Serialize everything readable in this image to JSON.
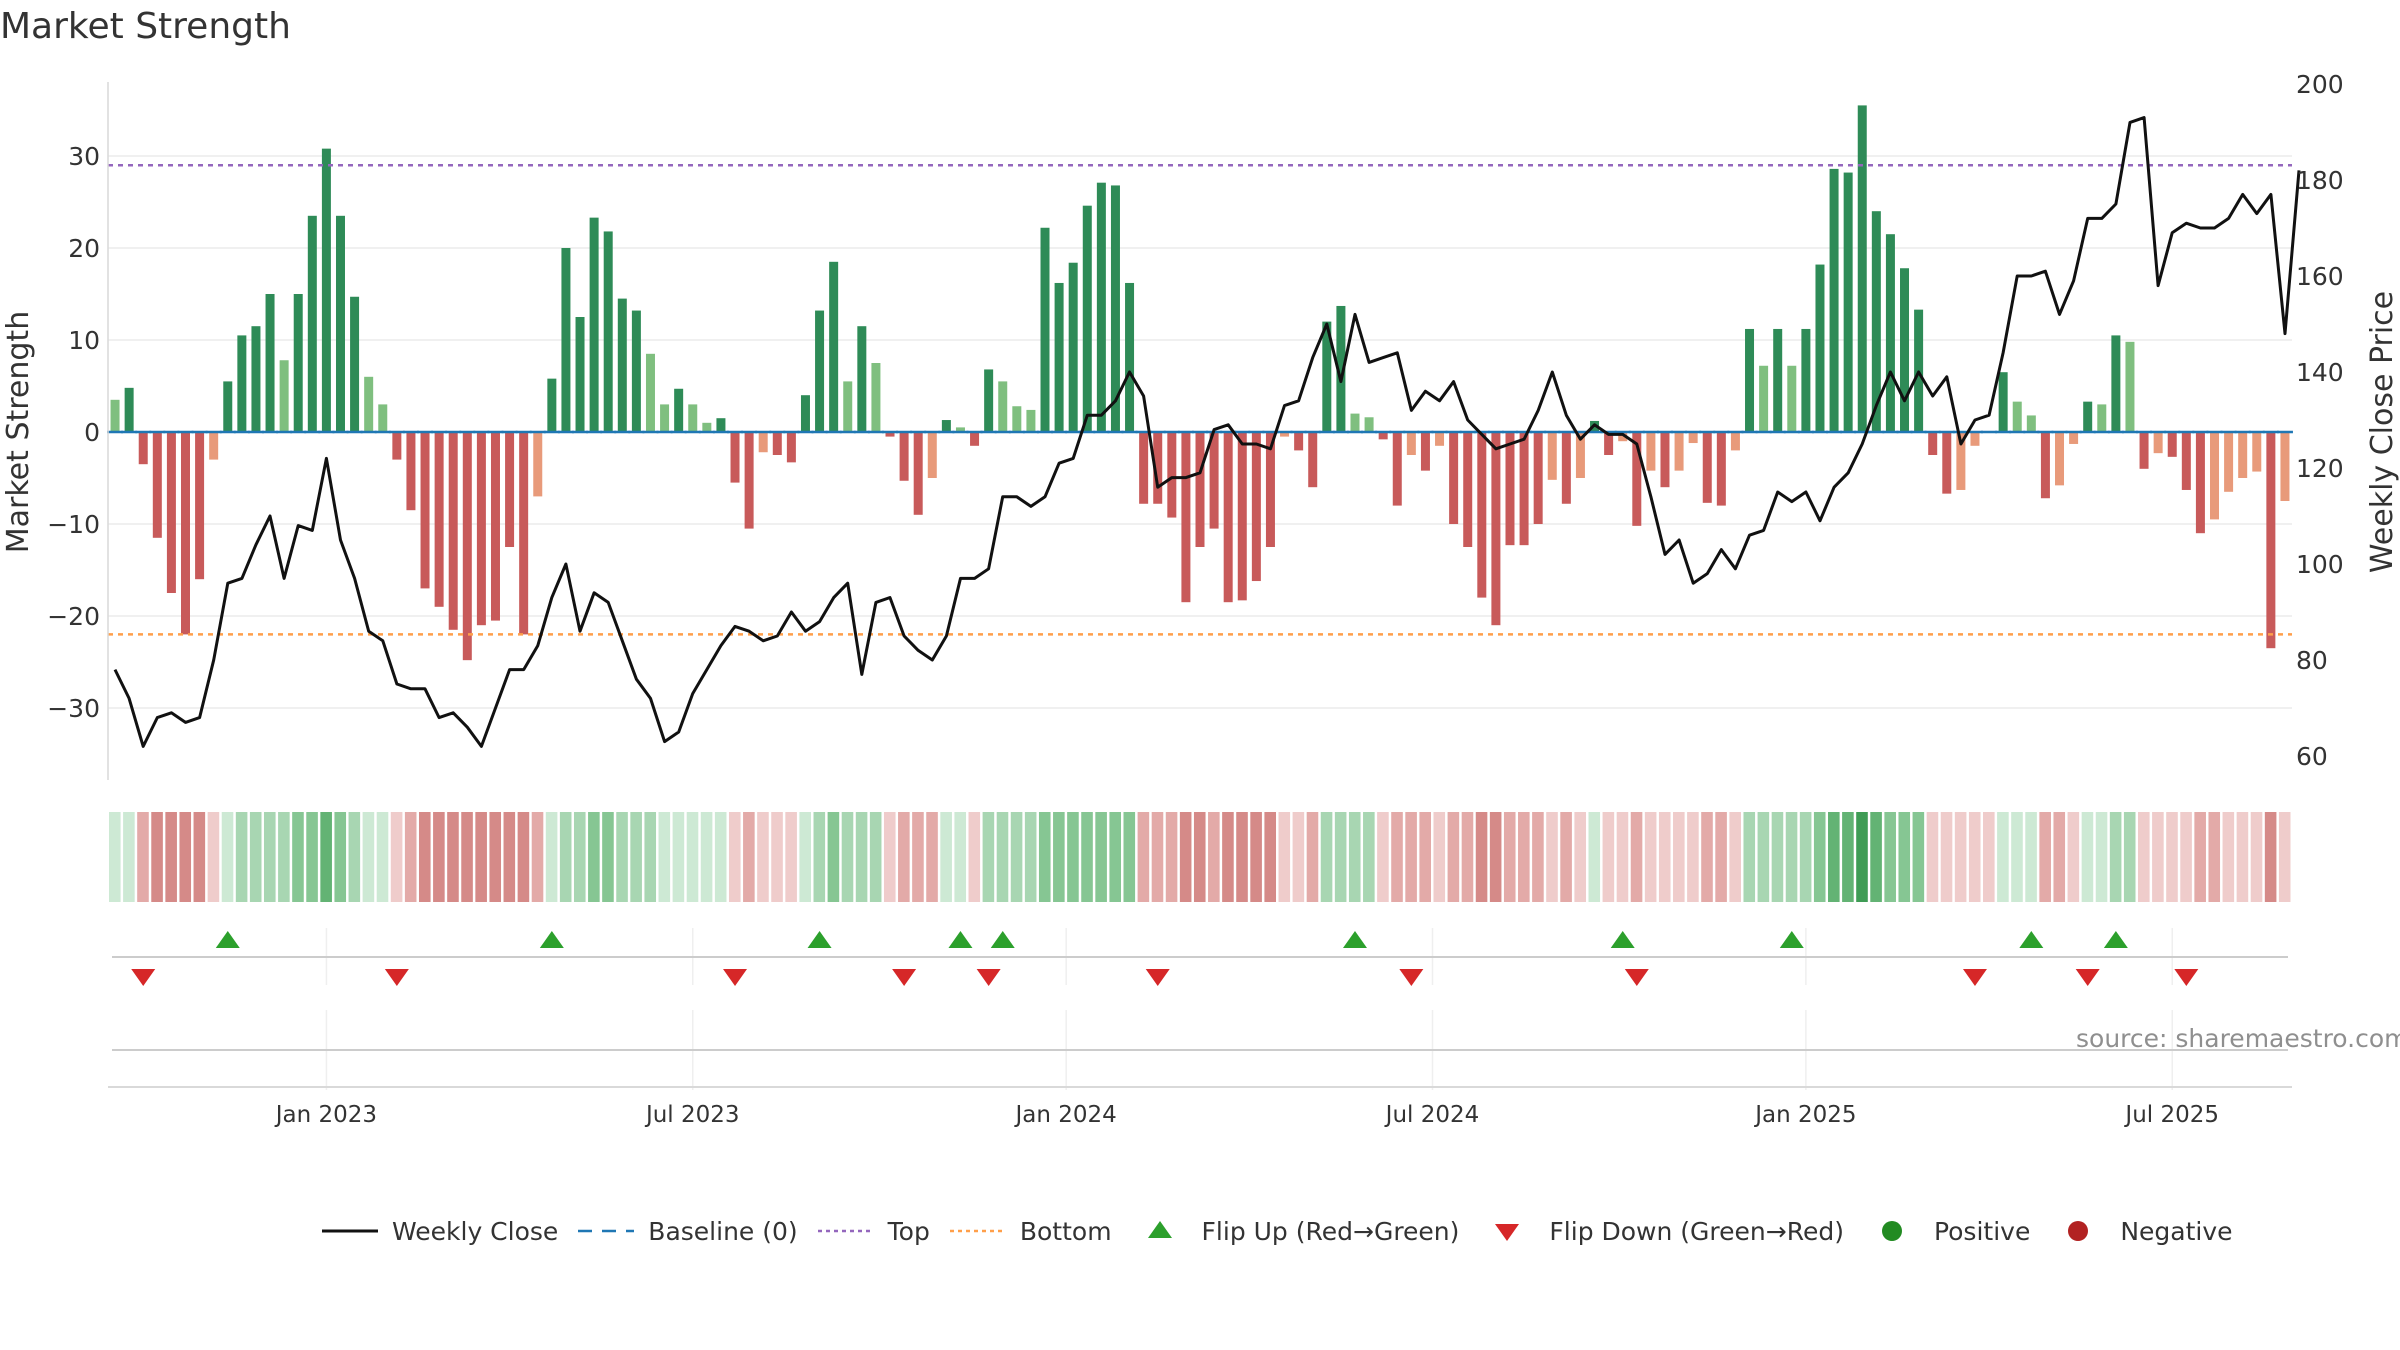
{
  "chart_data": {
    "type": "bar+line",
    "title": "Market Strength",
    "ylabel_left": "Market Strength",
    "ylabel_right": "Weekly Close Price",
    "ylim_left": [
      -38,
      38
    ],
    "ylim_right": [
      50,
      200
    ],
    "yticks_left": [
      30,
      20,
      10,
      0,
      -10,
      -20,
      -30
    ],
    "ytick_labels_left": [
      "30",
      "20",
      "10",
      "0",
      "−10",
      "−20",
      "−30"
    ],
    "yticks_right": [
      200,
      180,
      160,
      140,
      120,
      100,
      80,
      60
    ],
    "ytick_labels_right": [
      "200",
      "180",
      "160",
      "140",
      "120",
      "100",
      "80",
      "60"
    ],
    "top_level": 29,
    "bottom_level": -22,
    "x_tick_labels": [
      "Jan 2023",
      "Jul 2023",
      "Jan 2024",
      "Jul 2024",
      "Jan 2025",
      "Jul 2025"
    ],
    "x_tick_weeks": [
      15,
      41,
      67.5,
      93.5,
      120,
      146
    ],
    "colors": {
      "strong_green": "#2e8b57",
      "light_green": "#7fbf7f",
      "strong_red": "#c85a5a",
      "light_red": "#e89a7a",
      "line": "#111111",
      "baseline": "#1f77b4",
      "top": "#9467bd",
      "bottom": "#ff9f4a",
      "flip_up": "#2ca02c",
      "flip_down": "#d62728",
      "positive": "#228b22",
      "negative": "#b22222"
    },
    "strength": [
      3.5,
      4.8,
      -3.5,
      -11.5,
      -17.5,
      -22,
      -16,
      -3,
      5.5,
      10.5,
      11.5,
      15,
      7.8,
      15,
      23.5,
      30.8,
      23.5,
      14.7,
      6,
      3,
      -3,
      -8.5,
      -17,
      -19,
      -21.5,
      -24.8,
      -21,
      -20.5,
      -12.5,
      -22,
      -7,
      5.8,
      20,
      12.5,
      23.3,
      21.8,
      14.5,
      13.2,
      8.5,
      3,
      4.7,
      3,
      1,
      1.5,
      -5.5,
      -10.5,
      -2.2,
      -2.5,
      -3.3,
      4,
      13.2,
      18.5,
      5.5,
      11.5,
      7.5,
      -0.5,
      -5.3,
      -9,
      -5,
      1.3,
      0.5,
      -1.5,
      6.8,
      5.5,
      2.8,
      2.4,
      22.2,
      16.2,
      18.4,
      24.6,
      27.1,
      26.8,
      16.2,
      -7.8,
      -7.8,
      -9.3,
      -18.5,
      -12.5,
      -10.5,
      -18.5,
      -18.3,
      -16.2,
      -12.5,
      -0.5,
      -2,
      -6,
      12,
      13.7,
      2,
      1.6,
      -0.8,
      -8,
      -2.5,
      -4.2,
      -1.5,
      -10,
      -12.5,
      -18,
      -21,
      -12.3,
      -12.3,
      -10,
      -5.2,
      -7.8,
      -5,
      1.2,
      -2.5,
      -1,
      -10.2,
      -4.2,
      -6,
      -4.2,
      -1.2,
      -7.7,
      -8,
      -2,
      11.2,
      7.2,
      11.2,
      7.2,
      11.2,
      18.2,
      28.6,
      28.2,
      35.5,
      24,
      21.5,
      17.8,
      13.3,
      -2.5,
      -6.7,
      -6.3,
      -1.5,
      0,
      6.5,
      3.3,
      1.8,
      -7.2,
      -5.8,
      -1.3,
      3.3,
      3,
      10.5,
      9.8,
      -4,
      -2.3,
      -2.7,
      -6.3,
      -11,
      -9.5,
      -6.5,
      -5,
      -4.3,
      -23.5,
      -7.5
    ],
    "weekly_close": [
      78,
      72,
      62,
      68,
      69,
      67,
      68,
      80,
      96,
      97,
      104,
      110,
      97,
      108,
      107,
      122,
      105,
      97,
      86,
      84,
      75,
      74,
      74,
      68,
      69,
      66,
      62,
      70,
      78,
      78,
      83,
      93,
      100,
      86,
      94,
      92,
      84,
      76,
      72,
      63,
      65,
      73,
      78,
      83,
      87,
      86,
      84,
      85,
      90,
      86,
      88,
      93,
      96,
      77,
      92,
      93,
      85,
      82,
      80,
      85,
      97,
      97,
      99,
      114,
      114,
      112,
      114,
      121,
      122,
      131,
      131,
      134,
      140,
      135,
      116,
      118,
      118,
      119,
      128,
      129,
      125,
      125,
      124,
      133,
      134,
      143,
      150,
      138,
      152,
      142,
      143,
      144,
      132,
      136,
      134,
      138,
      130,
      127,
      124,
      125,
      126,
      132,
      140,
      131,
      126,
      129,
      127,
      127,
      125,
      114,
      102,
      105,
      96,
      98,
      103,
      99,
      106,
      107,
      115,
      113,
      115,
      109,
      116,
      119,
      125,
      133,
      140,
      134,
      140,
      135,
      139,
      125,
      130,
      131,
      144,
      160,
      160,
      161,
      152,
      159,
      172,
      172,
      175,
      192,
      193,
      158,
      169,
      171,
      170,
      170,
      172,
      177,
      173,
      177,
      148,
      182
    ],
    "heat_levels": [
      1,
      1,
      -2,
      -3,
      -3,
      -3,
      -3,
      -1,
      1,
      2,
      2,
      2,
      2,
      3,
      3,
      4,
      3,
      2,
      1,
      1,
      -1,
      -2,
      -3,
      -3,
      -3,
      -3,
      -3,
      -3,
      -3,
      -3,
      -2,
      1,
      2,
      2,
      3,
      3,
      2,
      2,
      2,
      1,
      1,
      1,
      1,
      1,
      -1,
      -2,
      -1,
      -1,
      -1,
      1,
      2,
      3,
      2,
      2,
      2,
      -1,
      -2,
      -2,
      -2,
      1,
      1,
      -1,
      2,
      2,
      2,
      2,
      3,
      3,
      3,
      3,
      3,
      3,
      3,
      -2,
      -2,
      -2,
      -3,
      -3,
      -2,
      -3,
      -3,
      -3,
      -3,
      -1,
      -1,
      -2,
      2,
      2,
      2,
      2,
      -1,
      -2,
      -2,
      -2,
      -1,
      -2,
      -2,
      -3,
      -3,
      -2,
      -2,
      -2,
      -1,
      -2,
      -1,
      1,
      -1,
      -1,
      -2,
      -1,
      -1,
      -1,
      -1,
      -2,
      -2,
      -1,
      2,
      2,
      2,
      2,
      2,
      3,
      4,
      4,
      5,
      4,
      3,
      3,
      3,
      -1,
      -1,
      -1,
      -1,
      -1,
      1,
      1,
      1,
      -2,
      -2,
      -1,
      1,
      1,
      2,
      2,
      -1,
      -1,
      -1,
      -1,
      -2,
      -2,
      -1,
      -1,
      -1,
      -3,
      -1
    ],
    "flip_up_weeks": [
      8,
      31,
      50,
      60,
      63,
      88,
      107,
      119,
      136,
      142
    ],
    "flip_down_weeks": [
      2,
      20,
      44,
      56,
      62,
      74,
      92,
      108,
      132,
      140,
      147
    ]
  },
  "source_text": "source: sharemaestro.com",
  "legend": [
    {
      "key": "line",
      "label": "Weekly Close"
    },
    {
      "key": "baseline",
      "label": "Baseline (0)"
    },
    {
      "key": "top",
      "label": "Top"
    },
    {
      "key": "bottom",
      "label": "Bottom"
    },
    {
      "key": "flip_up",
      "label": "Flip Up (Red→Green)"
    },
    {
      "key": "flip_down",
      "label": "Flip Down (Green→Red)"
    },
    {
      "key": "positive",
      "label": "Positive"
    },
    {
      "key": "negative",
      "label": "Negative"
    }
  ]
}
